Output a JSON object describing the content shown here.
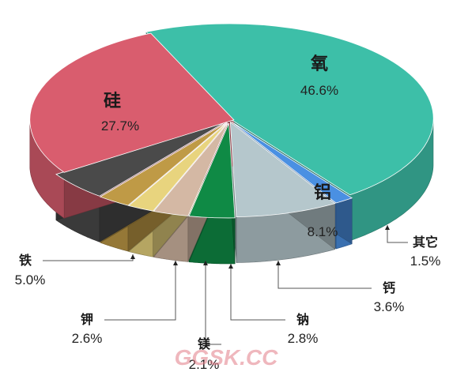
{
  "chart_data": {
    "type": "pie",
    "title": "",
    "style": "3d-exploded",
    "legend": "none",
    "slices": [
      {
        "label": "氧",
        "value": 46.6,
        "display": "46.6%",
        "color": "#3dbfa8"
      },
      {
        "label": "其它",
        "value": 1.5,
        "display": "1.5%",
        "color": "#4a90e2"
      },
      {
        "label": "铝",
        "value": 8.1,
        "display": "8.1%",
        "color": "#b5c7cc"
      },
      {
        "label": "钙",
        "value": 3.6,
        "display": "3.6%",
        "color": "#0f8a45"
      },
      {
        "label": "钠",
        "value": 2.8,
        "display": "2.8%",
        "color": "#d4b8a4"
      },
      {
        "label": "镁",
        "value": 2.1,
        "display": "2.1%",
        "color": "#e8d47e"
      },
      {
        "label": "钾",
        "value": 2.6,
        "display": "2.6%",
        "color": "#bf9a46"
      },
      {
        "label": "铁",
        "value": 5.0,
        "display": "5.0%",
        "color": "#4a4a4a"
      },
      {
        "label": "硅",
        "value": 27.7,
        "display": "27.7%",
        "color": "#d95d6e"
      }
    ]
  },
  "watermark": {
    "text": "GGSK.CC"
  }
}
